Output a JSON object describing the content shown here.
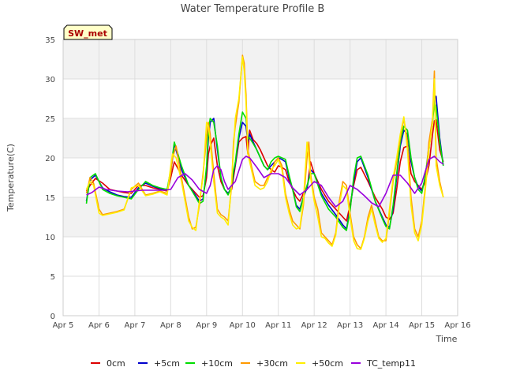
{
  "chart_data": {
    "type": "line",
    "title": "Water Temperature Profile B",
    "xlabel": "Time",
    "ylabel": "Temperature(C)",
    "site_label": "SW_met",
    "xlim": [
      0,
      11
    ],
    "ylim": [
      0,
      35
    ],
    "x_ticks": [
      0,
      1,
      2,
      3,
      4,
      5,
      6,
      7,
      8,
      9,
      10,
      11
    ],
    "x_tick_labels": [
      "Apr 5",
      "Apr 6",
      "Apr 7",
      "Apr 8",
      "Apr 9",
      "Apr 10",
      "Apr 11",
      "Apr 12",
      "Apr 13",
      "Apr 14",
      "Apr 15",
      "Apr 16"
    ],
    "y_ticks": [
      0,
      5,
      10,
      15,
      20,
      25,
      30,
      35
    ],
    "y_tick_labels": [
      "0",
      "5",
      "10",
      "15",
      "20",
      "25",
      "30",
      "35"
    ],
    "bands": [
      [
        10,
        15
      ],
      [
        20,
        25
      ],
      [
        30,
        35
      ]
    ],
    "legend_position": "bottom",
    "series": [
      {
        "name": "0cm",
        "color": "#dd0000",
        "x": [
          0.65,
          0.75,
          0.9,
          1.1,
          1.3,
          1.5,
          1.7,
          1.9,
          2.1,
          2.3,
          2.5,
          2.7,
          2.9,
          3.0,
          3.1,
          3.3,
          3.5,
          3.7,
          3.8,
          3.9,
          4.0,
          4.05,
          4.1,
          4.2,
          4.3,
          4.4,
          4.5,
          4.6,
          4.7,
          4.75,
          4.8,
          4.9,
          5.0,
          5.1,
          5.15,
          5.2,
          5.3,
          5.4,
          5.5,
          5.6,
          5.7,
          5.8,
          5.9,
          6.0,
          6.1,
          6.2,
          6.3,
          6.4,
          6.5,
          6.6,
          6.7,
          6.8,
          6.9,
          7.0,
          7.2,
          7.4,
          7.6,
          7.8,
          7.9,
          8.0,
          8.1,
          8.2,
          8.3,
          8.5,
          8.7,
          8.9,
          9.0,
          9.1,
          9.2,
          9.3,
          9.4,
          9.5,
          9.6,
          9.7,
          9.8,
          9.9,
          10.0,
          10.1,
          10.2,
          10.3,
          10.35,
          10.4,
          10.5,
          10.6
        ],
        "y": [
          15.8,
          16.5,
          17.4,
          16.8,
          16.0,
          15.8,
          15.6,
          15.5,
          16.5,
          16.5,
          16.2,
          16.0,
          15.8,
          17.5,
          19.5,
          17.8,
          16.5,
          15.5,
          15.0,
          15.2,
          17.5,
          20.5,
          21.5,
          22.5,
          19.0,
          17.0,
          16.0,
          15.5,
          16.0,
          17.5,
          19.0,
          22.0,
          22.5,
          22.7,
          20.5,
          23.5,
          22.3,
          21.8,
          21.0,
          20.0,
          19.0,
          18.5,
          18.2,
          19.0,
          18.8,
          18.5,
          17.0,
          16.0,
          15.0,
          14.5,
          15.5,
          16.0,
          19.5,
          18.0,
          16.0,
          14.5,
          13.5,
          12.5,
          12.0,
          14.0,
          16.5,
          18.5,
          18.8,
          17.0,
          15.0,
          13.5,
          12.5,
          12.2,
          13.0,
          16.0,
          19.5,
          21.3,
          21.5,
          18.0,
          17.0,
          16.5,
          16.0,
          17.0,
          19.0,
          23.0,
          24.7,
          24.8,
          21.0,
          19.5
        ]
      },
      {
        "name": "+5cm",
        "color": "#0000cc",
        "x": [
          0.65,
          0.75,
          0.9,
          1.1,
          1.3,
          1.5,
          1.7,
          1.9,
          2.1,
          2.3,
          2.5,
          2.7,
          2.9,
          3.0,
          3.1,
          3.3,
          3.5,
          3.7,
          3.8,
          3.9,
          4.0,
          4.05,
          4.1,
          4.2,
          4.3,
          4.4,
          4.5,
          4.6,
          4.7,
          4.75,
          4.8,
          4.9,
          5.0,
          5.1,
          5.15,
          5.2,
          5.3,
          5.4,
          5.5,
          5.6,
          5.7,
          5.8,
          5.9,
          6.0,
          6.1,
          6.2,
          6.3,
          6.4,
          6.5,
          6.6,
          6.7,
          6.8,
          6.9,
          7.0,
          7.2,
          7.4,
          7.6,
          7.8,
          7.9,
          8.0,
          8.1,
          8.2,
          8.3,
          8.5,
          8.7,
          8.9,
          9.0,
          9.1,
          9.2,
          9.3,
          9.4,
          9.5,
          9.6,
          9.7,
          9.8,
          9.9,
          10.0,
          10.1,
          10.2,
          10.3,
          10.35,
          10.4,
          10.5,
          10.6
        ],
        "y": [
          14.5,
          17.2,
          17.8,
          16.2,
          15.7,
          15.3,
          15.1,
          15.0,
          16.2,
          16.8,
          16.4,
          16.1,
          15.9,
          18.0,
          21.8,
          18.5,
          16.5,
          15.2,
          14.5,
          14.8,
          18.5,
          22.5,
          24.5,
          25.0,
          21.0,
          17.5,
          16.0,
          15.5,
          16.3,
          18.0,
          19.2,
          22.5,
          24.5,
          24.0,
          22.0,
          23.0,
          22.0,
          21.0,
          20.0,
          19.0,
          18.5,
          19.0,
          19.5,
          20.0,
          19.8,
          19.5,
          17.5,
          16.0,
          14.0,
          13.5,
          15.0,
          16.2,
          18.5,
          18.0,
          15.5,
          14.0,
          12.8,
          11.5,
          11.0,
          13.5,
          17.0,
          19.5,
          20.0,
          17.5,
          14.5,
          12.5,
          11.5,
          11.2,
          13.5,
          17.5,
          21.5,
          23.5,
          23.0,
          19.5,
          17.5,
          16.3,
          15.8,
          17.5,
          21.0,
          25.0,
          27.5,
          27.8,
          22.5,
          19.0
        ]
      },
      {
        "name": "+10cm",
        "color": "#00dd00",
        "x": [
          0.65,
          0.75,
          0.9,
          1.1,
          1.3,
          1.5,
          1.7,
          1.9,
          2.1,
          2.3,
          2.5,
          2.7,
          2.9,
          3.0,
          3.1,
          3.3,
          3.5,
          3.7,
          3.8,
          3.9,
          4.0,
          4.05,
          4.1,
          4.2,
          4.3,
          4.4,
          4.5,
          4.6,
          4.7,
          4.75,
          4.8,
          4.9,
          5.0,
          5.1,
          5.15,
          5.2,
          5.3,
          5.4,
          5.5,
          5.6,
          5.7,
          5.8,
          5.9,
          6.0,
          6.1,
          6.2,
          6.3,
          6.4,
          6.5,
          6.6,
          6.7,
          6.8,
          6.9,
          7.0,
          7.2,
          7.4,
          7.6,
          7.8,
          7.9,
          8.0,
          8.1,
          8.2,
          8.3,
          8.5,
          8.7,
          8.9,
          9.0,
          9.1,
          9.2,
          9.3,
          9.4,
          9.5,
          9.6,
          9.7,
          9.8,
          9.9,
          10.0,
          10.1,
          10.2,
          10.3,
          10.35,
          10.4,
          10.5,
          10.6
        ],
        "y": [
          14.2,
          17.5,
          18.0,
          16.0,
          15.5,
          15.2,
          15.0,
          14.8,
          16.0,
          17.0,
          16.5,
          16.2,
          16.0,
          18.5,
          22.0,
          19.0,
          16.5,
          15.0,
          14.2,
          14.5,
          19.0,
          23.5,
          25.0,
          24.5,
          21.5,
          17.5,
          16.0,
          15.3,
          16.5,
          18.3,
          19.5,
          23.0,
          25.8,
          25.0,
          22.5,
          22.5,
          21.8,
          21.0,
          20.0,
          19.0,
          18.5,
          19.5,
          20.0,
          20.2,
          20.0,
          19.8,
          17.8,
          16.0,
          13.8,
          13.2,
          15.0,
          16.5,
          18.0,
          18.0,
          15.2,
          13.5,
          12.5,
          11.2,
          10.8,
          13.2,
          17.5,
          20.0,
          20.2,
          17.8,
          14.5,
          12.3,
          11.3,
          11.0,
          14.0,
          18.0,
          22.0,
          24.0,
          23.5,
          20.0,
          17.5,
          16.0,
          15.5,
          17.8,
          21.5,
          24.5,
          27.0,
          26.5,
          22.0,
          19.0
        ]
      },
      {
        "name": "+30cm",
        "color": "#ff9900",
        "x": [
          0.65,
          0.75,
          0.85,
          1.0,
          1.1,
          1.3,
          1.5,
          1.7,
          1.9,
          2.1,
          2.3,
          2.5,
          2.7,
          2.9,
          3.0,
          3.05,
          3.15,
          3.3,
          3.5,
          3.6,
          3.7,
          3.8,
          3.9,
          4.0,
          4.05,
          4.1,
          4.2,
          4.3,
          4.4,
          4.5,
          4.6,
          4.7,
          4.75,
          4.8,
          4.9,
          5.0,
          5.05,
          5.1,
          5.15,
          5.25,
          5.35,
          5.5,
          5.6,
          5.7,
          5.8,
          5.9,
          6.0,
          6.1,
          6.2,
          6.3,
          6.4,
          6.5,
          6.6,
          6.7,
          6.8,
          6.85,
          6.9,
          7.0,
          7.1,
          7.2,
          7.3,
          7.4,
          7.5,
          7.6,
          7.7,
          7.8,
          7.9,
          8.0,
          8.1,
          8.2,
          8.3,
          8.4,
          8.5,
          8.6,
          8.7,
          8.8,
          8.9,
          9.0,
          9.1,
          9.2,
          9.3,
          9.4,
          9.5,
          9.6,
          9.7,
          9.8,
          9.9,
          10.0,
          10.1,
          10.2,
          10.3,
          10.35,
          10.4,
          10.5,
          10.6
        ],
        "y": [
          15.5,
          17.5,
          16.8,
          13.5,
          12.8,
          13.0,
          13.2,
          13.5,
          16.0,
          16.8,
          15.3,
          15.5,
          15.8,
          15.5,
          18.0,
          20.0,
          21.5,
          17.5,
          12.5,
          11.0,
          11.2,
          14.0,
          18.0,
          22.5,
          24.5,
          23.0,
          18.0,
          13.5,
          12.8,
          12.5,
          12.0,
          16.5,
          22.0,
          24.0,
          27.0,
          33.0,
          32.0,
          28.0,
          21.0,
          19.0,
          17.0,
          16.5,
          16.5,
          17.5,
          18.0,
          19.5,
          20.0,
          19.0,
          15.5,
          13.5,
          12.0,
          11.5,
          11.0,
          14.0,
          20.0,
          22.0,
          18.0,
          15.0,
          13.5,
          10.5,
          10.0,
          9.5,
          9.0,
          10.5,
          14.5,
          17.0,
          16.5,
          13.0,
          10.0,
          9.0,
          8.5,
          10.0,
          12.5,
          14.0,
          12.0,
          10.0,
          9.5,
          9.5,
          13.0,
          17.0,
          19.5,
          22.5,
          25.0,
          22.0,
          15.0,
          11.0,
          10.0,
          12.0,
          16.5,
          22.0,
          25.0,
          31.0,
          20.0,
          17.0,
          15.0
        ]
      },
      {
        "name": "+50cm",
        "color": "#ffee00",
        "x": [
          0.65,
          0.75,
          0.85,
          1.0,
          1.1,
          1.3,
          1.5,
          1.7,
          1.9,
          2.1,
          2.3,
          2.5,
          2.7,
          2.9,
          3.0,
          3.05,
          3.15,
          3.3,
          3.5,
          3.6,
          3.7,
          3.8,
          3.9,
          4.0,
          4.05,
          4.1,
          4.2,
          4.3,
          4.4,
          4.5,
          4.6,
          4.7,
          4.75,
          4.8,
          4.9,
          5.0,
          5.05,
          5.1,
          5.15,
          5.25,
          5.35,
          5.5,
          5.6,
          5.7,
          5.8,
          5.9,
          6.0,
          6.1,
          6.2,
          6.3,
          6.4,
          6.5,
          6.6,
          6.7,
          6.8,
          6.85,
          6.9,
          7.0,
          7.1,
          7.2,
          7.3,
          7.4,
          7.5,
          7.6,
          7.7,
          7.8,
          7.9,
          8.0,
          8.1,
          8.2,
          8.3,
          8.4,
          8.5,
          8.6,
          8.7,
          8.8,
          8.9,
          9.0,
          9.1,
          9.2,
          9.3,
          9.4,
          9.5,
          9.6,
          9.7,
          9.8,
          9.9,
          10.0,
          10.1,
          10.2,
          10.3,
          10.35,
          10.4,
          10.5,
          10.6
        ],
        "y": [
          16.0,
          17.0,
          16.5,
          13.0,
          12.7,
          12.9,
          13.1,
          13.4,
          16.2,
          16.5,
          15.2,
          15.4,
          15.7,
          15.3,
          19.0,
          20.5,
          20.0,
          17.0,
          12.0,
          11.2,
          10.8,
          14.5,
          17.5,
          24.5,
          24.0,
          22.0,
          17.0,
          13.0,
          12.5,
          12.2,
          11.5,
          17.0,
          21.0,
          25.0,
          27.5,
          32.8,
          31.0,
          27.0,
          20.5,
          18.5,
          16.5,
          16.0,
          16.2,
          17.0,
          18.5,
          19.0,
          19.8,
          18.5,
          15.0,
          13.0,
          11.5,
          11.0,
          11.2,
          14.5,
          22.0,
          20.0,
          17.5,
          14.5,
          12.5,
          10.0,
          9.8,
          9.2,
          8.8,
          10.2,
          14.0,
          16.5,
          16.0,
          12.5,
          9.5,
          8.5,
          8.4,
          9.8,
          12.0,
          13.5,
          11.5,
          9.8,
          9.3,
          9.8,
          13.5,
          17.5,
          20.0,
          23.0,
          25.2,
          21.0,
          14.0,
          10.5,
          9.5,
          11.5,
          16.0,
          21.0,
          24.5,
          30.0,
          19.0,
          16.5,
          15.0
        ]
      },
      {
        "name": "TC_temp11",
        "color": "#9900dd",
        "x": [
          0.65,
          0.8,
          1.0,
          1.2,
          1.5,
          1.8,
          2.0,
          2.2,
          2.5,
          2.8,
          3.0,
          3.2,
          3.4,
          3.6,
          3.8,
          4.0,
          4.1,
          4.2,
          4.3,
          4.4,
          4.5,
          4.6,
          4.8,
          5.0,
          5.1,
          5.2,
          5.4,
          5.6,
          5.8,
          6.0,
          6.2,
          6.4,
          6.6,
          6.8,
          7.0,
          7.2,
          7.4,
          7.6,
          7.8,
          8.0,
          8.2,
          8.4,
          8.6,
          8.8,
          9.0,
          9.2,
          9.4,
          9.6,
          9.8,
          10.0,
          10.2,
          10.35,
          10.5,
          10.6
        ],
        "y": [
          15.3,
          15.6,
          16.3,
          16.0,
          15.8,
          15.7,
          15.8,
          15.9,
          15.9,
          15.9,
          16.0,
          17.5,
          18.0,
          17.2,
          16.0,
          15.5,
          16.5,
          18.5,
          19.0,
          18.5,
          17.0,
          16.0,
          17.0,
          19.8,
          20.2,
          20.0,
          18.8,
          17.5,
          18.0,
          18.0,
          17.5,
          16.2,
          15.3,
          16.0,
          17.0,
          16.5,
          15.0,
          13.8,
          14.5,
          16.5,
          16.0,
          15.2,
          14.3,
          13.8,
          15.5,
          17.8,
          17.8,
          16.8,
          15.5,
          16.8,
          19.8,
          20.2,
          19.5,
          19.2
        ]
      }
    ]
  }
}
